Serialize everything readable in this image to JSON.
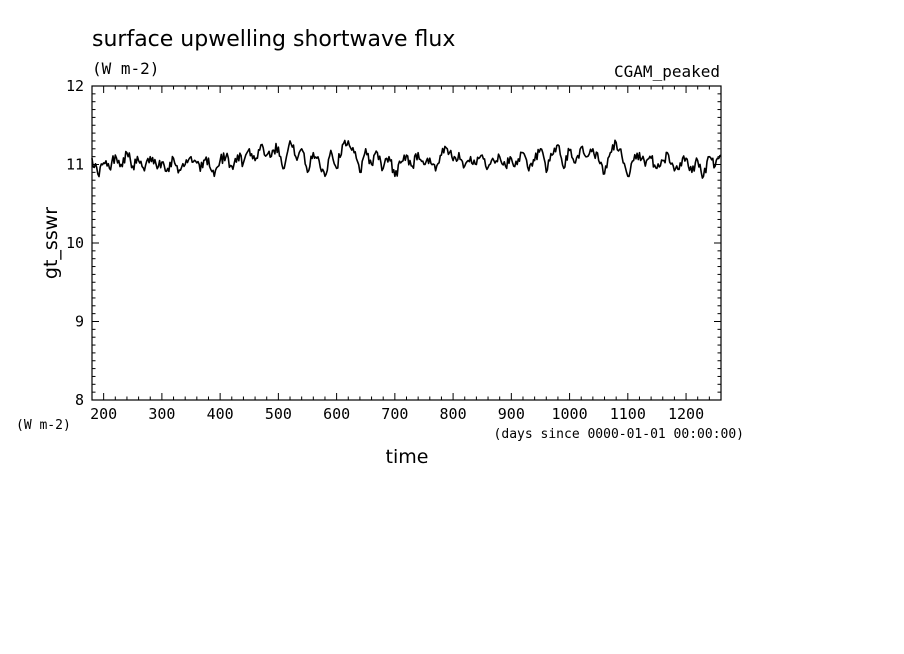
{
  "chart_data": {
    "type": "line",
    "title": "surface upwelling shortwave flux",
    "title_units": "(W m-2)",
    "experiment": "CGAM_peaked",
    "ylabel": "gt_sswr",
    "ylabel_units": "(W m-2)",
    "xlabel": "time",
    "xlabel_units": "(days since 0000-01-01 00:00:00)",
    "xlim": [
      180,
      1260
    ],
    "ylim": [
      8,
      12
    ],
    "x_ticks": [
      200,
      300,
      400,
      500,
      600,
      700,
      800,
      900,
      1000,
      1100,
      1200
    ],
    "y_ticks": [
      8,
      9,
      10,
      11,
      12
    ],
    "grid": false,
    "series": [
      {
        "x": [
          180,
          190,
          200,
          210,
          220,
          230,
          240,
          250,
          260,
          270,
          280,
          290,
          300,
          310,
          320,
          330,
          340,
          350,
          360,
          370,
          380,
          390,
          400,
          410,
          420,
          430,
          440,
          450,
          460,
          470,
          480,
          490,
          500,
          510,
          520,
          530,
          540,
          550,
          560,
          570,
          580,
          590,
          600,
          610,
          620,
          630,
          640,
          650,
          660,
          670,
          680,
          690,
          700,
          710,
          720,
          730,
          740,
          750,
          760,
          770,
          780,
          790,
          800,
          810,
          820,
          830,
          840,
          850,
          860,
          870,
          880,
          890,
          900,
          910,
          920,
          930,
          940,
          950,
          960,
          970,
          980,
          990,
          1000,
          1010,
          1020,
          1030,
          1040,
          1050,
          1060,
          1070,
          1080,
          1090,
          1100,
          1110,
          1120,
          1130,
          1140,
          1150,
          1160,
          1170,
          1180,
          1190,
          1200,
          1210,
          1220,
          1230,
          1240,
          1250,
          1260
        ],
        "y": [
          11.08,
          10.88,
          11.02,
          10.95,
          11.12,
          11.0,
          11.15,
          10.98,
          11.05,
          10.92,
          11.1,
          11.0,
          11.03,
          10.95,
          11.08,
          10.93,
          11.0,
          11.1,
          11.02,
          10.96,
          11.08,
          10.85,
          11.05,
          11.1,
          10.98,
          11.12,
          11.02,
          11.2,
          11.05,
          11.25,
          11.12,
          11.18,
          11.22,
          10.95,
          11.3,
          11.1,
          11.2,
          10.9,
          11.15,
          11.05,
          10.85,
          11.18,
          10.95,
          11.25,
          11.3,
          11.15,
          10.9,
          11.2,
          11.0,
          11.15,
          10.95,
          11.1,
          10.85,
          11.02,
          11.12,
          10.98,
          11.15,
          11.0,
          11.08,
          10.92,
          11.12,
          11.2,
          11.05,
          11.15,
          10.98,
          11.1,
          11.0,
          11.12,
          10.96,
          11.05,
          11.1,
          10.98,
          11.08,
          11.0,
          11.15,
          10.92,
          11.05,
          11.2,
          10.9,
          11.12,
          11.25,
          10.95,
          11.18,
          11.02,
          11.22,
          11.1,
          11.2,
          11.05,
          10.88,
          11.15,
          11.28,
          11.1,
          10.85,
          11.05,
          11.15,
          10.98,
          11.08,
          10.95,
          11.05,
          11.12,
          10.92,
          11.02,
          11.08,
          10.9,
          11.05,
          10.85,
          11.1,
          10.98,
          11.12
        ]
      }
    ]
  }
}
